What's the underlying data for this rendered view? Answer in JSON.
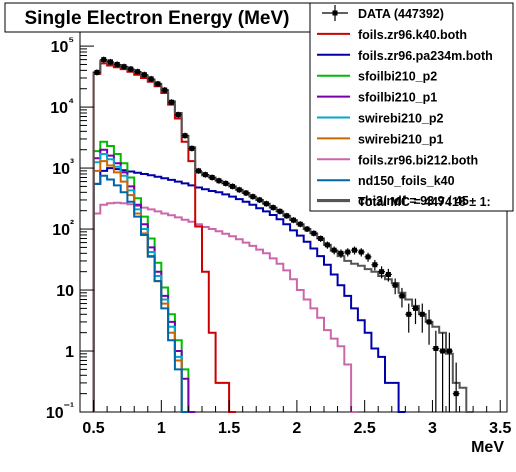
{
  "chart_data": {
    "type": "histogram",
    "title": "Single Electron Energy (MeV)",
    "xlabel": "MeV",
    "ylabel": "",
    "xlim": [
      0.4,
      3.55
    ],
    "ylim": [
      0.1,
      300000
    ],
    "y_scale": "log",
    "x_ticks": [
      0.5,
      1,
      1.5,
      2,
      2.5,
      3,
      3.5
    ],
    "x_tick_labels": [
      "0.5",
      "1",
      "1.5",
      "2",
      "2.5",
      "3",
      "3.5"
    ],
    "y_ticks": [
      0.1,
      1,
      10,
      100,
      1000,
      10000,
      100000
    ],
    "y_tick_labels": [
      "10⁻¹",
      "1",
      "10",
      "10²",
      "10³",
      "10⁴",
      "10⁵"
    ],
    "legend_position": "top-right",
    "bin_edges": [
      0.5,
      0.55,
      0.6,
      0.65,
      0.7,
      0.75,
      0.8,
      0.85,
      0.9,
      0.95,
      1.0,
      1.05,
      1.1,
      1.15,
      1.2,
      1.25,
      1.3,
      1.35,
      1.4,
      1.45,
      1.5,
      1.55,
      1.6,
      1.65,
      1.7,
      1.75,
      1.8,
      1.85,
      1.9,
      1.95,
      2.0,
      2.05,
      2.1,
      2.15,
      2.2,
      2.25,
      2.3,
      2.35,
      2.4,
      2.45,
      2.5,
      2.55,
      2.6,
      2.65,
      2.7,
      2.75,
      2.8,
      2.85,
      2.9,
      2.95,
      3.0,
      3.05,
      3.1,
      3.15,
      3.2,
      3.25,
      3.3
    ],
    "series": [
      {
        "name": "foils.zr96.k40.both",
        "color": "#cc0000",
        "values": [
          35000,
          52000,
          48000,
          45000,
          42000,
          38000,
          34000,
          30000,
          26000,
          22000,
          17000,
          11000,
          6500,
          2700,
          1300,
          110,
          20,
          2,
          0.3,
          0.3,
          0.1
        ]
      },
      {
        "name": "foils.zr96.pa234m.both",
        "color": "#0000aa",
        "values": [
          550,
          900,
          1000,
          960,
          920,
          880,
          840,
          800,
          760,
          720,
          680,
          640,
          600,
          560,
          520,
          480,
          450,
          420,
          400,
          370,
          340,
          310,
          280,
          250,
          220,
          195,
          170,
          145,
          120,
          95,
          78,
          62,
          48,
          36,
          26,
          18,
          12,
          8,
          5,
          3.2,
          2,
          1.1,
          0.8,
          0.3,
          0.3,
          0.1
        ]
      },
      {
        "name": "sfoilbi210_p2",
        "color": "#00bb00",
        "values": [
          1900,
          2700,
          2300,
          1700,
          1200,
          700,
          320,
          160,
          70,
          28,
          11,
          4,
          1.5,
          0.5,
          0.1
        ]
      },
      {
        "name": "sfoilbi210_p1",
        "color": "#7700aa",
        "values": [
          1450,
          2000,
          1600,
          1200,
          850,
          500,
          250,
          120,
          50,
          20,
          8,
          3,
          1,
          0.35,
          0.1
        ]
      },
      {
        "name": "swirebi210_p2",
        "color": "#00aacc",
        "values": [
          1250,
          1700,
          1400,
          1050,
          750,
          430,
          210,
          100,
          42,
          17,
          7,
          2.5,
          0.8,
          0.1
        ]
      },
      {
        "name": "swirebi210_p1",
        "color": "#cc6600",
        "values": [
          900,
          1300,
          1100,
          850,
          600,
          360,
          180,
          85,
          35,
          14,
          6,
          2,
          0.7,
          0.1
        ]
      },
      {
        "name": "foils.zr96.bi212.both",
        "color": "#cc66aa",
        "values": [
          180,
          250,
          265,
          270,
          265,
          255,
          240,
          225,
          210,
          195,
          180,
          168,
          155,
          142,
          132,
          120,
          108,
          100,
          92,
          84,
          76,
          68,
          60,
          53,
          46,
          40,
          33,
          27,
          21,
          15,
          10,
          7,
          5,
          3.5,
          2.2,
          1.6,
          1.2,
          0.6,
          0.1
        ]
      },
      {
        "name": "nd150_foils_k40",
        "color": "#0066aa",
        "values": [
          550,
          750,
          650,
          520,
          400,
          280,
          160,
          80,
          36,
          14,
          5,
          1.5,
          0.5,
          0.1
        ]
      },
      {
        "name": "Total MC = 447418 ± 1:",
        "color": "#555555",
        "values": [
          37000,
          58000,
          52000,
          49000,
          46000,
          41000,
          37000,
          33000,
          28000,
          24000,
          19000,
          12500,
          8000,
          3400,
          2200,
          850,
          760,
          700,
          620,
          560,
          500,
          440,
          390,
          340,
          300,
          260,
          225,
          195,
          165,
          140,
          120,
          100,
          85,
          70,
          55,
          44,
          36,
          30,
          27,
          25,
          22,
          20,
          17,
          15,
          13,
          9,
          7,
          5.5,
          4,
          3,
          2.5,
          2,
          0.9,
          0.3,
          0.25,
          0.1
        ]
      }
    ],
    "data_series": {
      "name": "DATA (447392)",
      "color": "#000000",
      "points": [
        [
          0.525,
          37000
        ],
        [
          0.575,
          60000
        ],
        [
          0.625,
          55000
        ],
        [
          0.675,
          50000
        ],
        [
          0.725,
          46000
        ],
        [
          0.775,
          42000
        ],
        [
          0.825,
          38000
        ],
        [
          0.875,
          34000
        ],
        [
          0.925,
          29000
        ],
        [
          0.975,
          24000
        ],
        [
          1.025,
          19000
        ],
        [
          1.075,
          12000
        ],
        [
          1.125,
          7500
        ],
        [
          1.175,
          3400
        ],
        [
          1.225,
          2100
        ],
        [
          1.275,
          900
        ],
        [
          1.325,
          780
        ],
        [
          1.375,
          700
        ],
        [
          1.425,
          620
        ],
        [
          1.475,
          560
        ],
        [
          1.525,
          500
        ],
        [
          1.575,
          440
        ],
        [
          1.625,
          390
        ],
        [
          1.675,
          340
        ],
        [
          1.725,
          300
        ],
        [
          1.775,
          260
        ],
        [
          1.825,
          225
        ],
        [
          1.875,
          195
        ],
        [
          1.925,
          165
        ],
        [
          1.975,
          140
        ],
        [
          2.025,
          120
        ],
        [
          2.075,
          100
        ],
        [
          2.125,
          85
        ],
        [
          2.175,
          70
        ],
        [
          2.225,
          55
        ],
        [
          2.275,
          45
        ],
        [
          2.325,
          40
        ],
        [
          2.375,
          42
        ],
        [
          2.425,
          45
        ],
        [
          2.475,
          42
        ],
        [
          2.525,
          35
        ],
        [
          2.575,
          26
        ],
        [
          2.625,
          20
        ],
        [
          2.675,
          18
        ],
        [
          2.725,
          12
        ],
        [
          2.775,
          8
        ],
        [
          2.825,
          4
        ],
        [
          2.875,
          5
        ],
        [
          2.925,
          4
        ],
        [
          2.975,
          3
        ],
        [
          3.025,
          1.1
        ],
        [
          3.075,
          1
        ],
        [
          3.125,
          1
        ],
        [
          3.175,
          0.2
        ]
      ]
    },
    "chi2_label": "chi2/ndf = 93.9 / 45"
  }
}
